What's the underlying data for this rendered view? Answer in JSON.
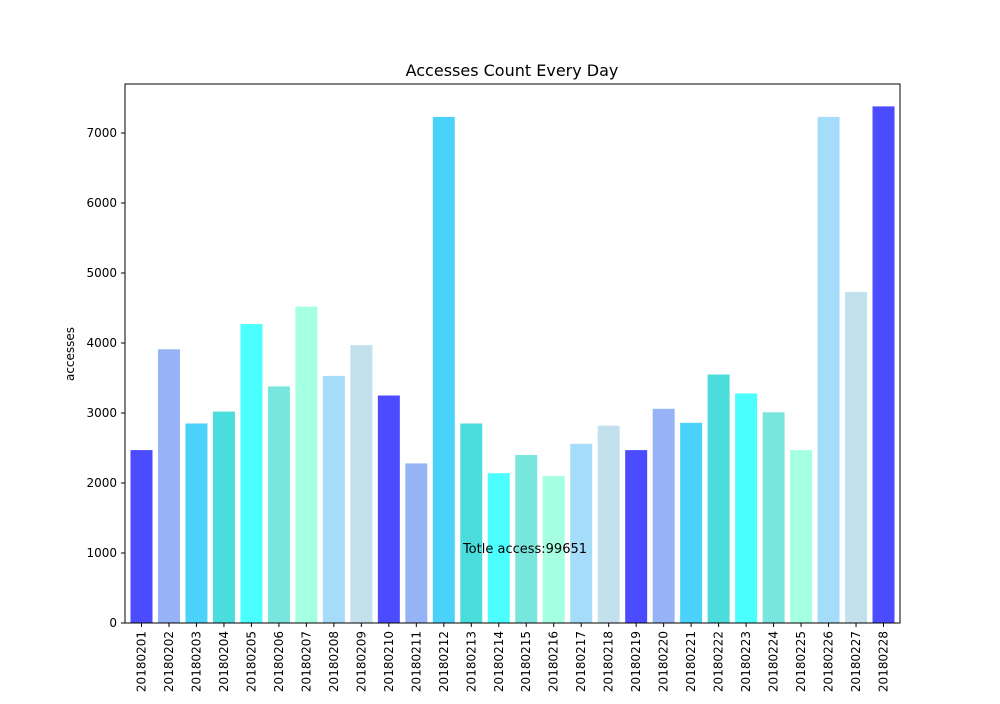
{
  "chart_data": {
    "type": "bar",
    "title": "Accesses Count Every Day",
    "xlabel": "",
    "ylabel": "accesses",
    "ylim": [
      0,
      7700
    ],
    "yticks": [
      0,
      1000,
      2000,
      3000,
      4000,
      5000,
      6000,
      7000
    ],
    "grid": false,
    "categories": [
      "20180201",
      "20180202",
      "20180203",
      "20180204",
      "20180205",
      "20180206",
      "20180207",
      "20180208",
      "20180209",
      "20180210",
      "20180211",
      "20180212",
      "20180213",
      "20180214",
      "20180215",
      "20180216",
      "20180217",
      "20180218",
      "20180219",
      "20180220",
      "20180221",
      "20180222",
      "20180223",
      "20180224",
      "20180225",
      "20180226",
      "20180227",
      "20180228"
    ],
    "values": [
      2470,
      3910,
      2850,
      3020,
      4270,
      3380,
      4520,
      3530,
      3970,
      3250,
      2280,
      7230,
      2850,
      2140,
      2400,
      2100,
      2560,
      2820,
      2470,
      3060,
      2860,
      3550,
      3280,
      3010,
      2470,
      7230,
      4730,
      7380
    ],
    "bar_colors": [
      "#4b4bff",
      "#96b4f5",
      "#4bd2fa",
      "#4bdcdc",
      "#4bffff",
      "#78e6dc",
      "#a5ffe1",
      "#a5dcfa",
      "#c3e1ec"
    ],
    "annotation": "Totle access:99651"
  }
}
